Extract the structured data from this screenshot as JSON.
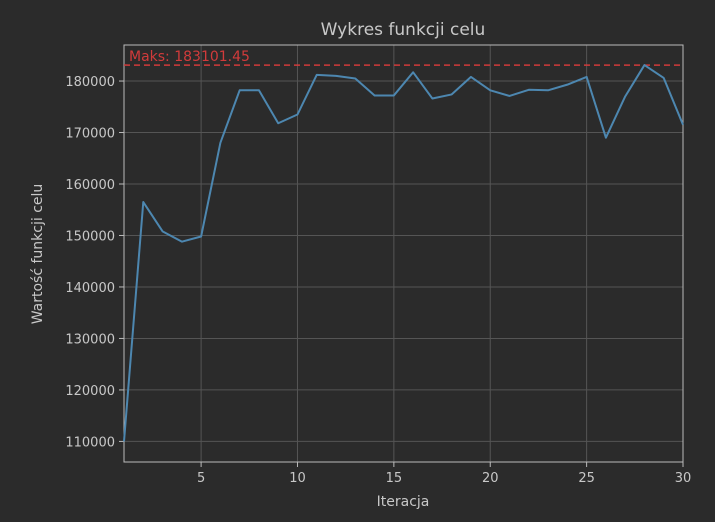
{
  "chart_data": {
    "type": "line",
    "title": "Wykres funkcji celu",
    "xlabel": "Iteracja",
    "ylabel": "Wartość funkcji celu",
    "xlim": [
      1,
      30
    ],
    "ylim": [
      106000,
      187000
    ],
    "xticks": [
      5,
      10,
      15,
      20,
      25,
      30
    ],
    "yticks": [
      110000,
      120000,
      130000,
      140000,
      150000,
      160000,
      170000,
      180000
    ],
    "grid": true,
    "x": [
      1,
      2,
      3,
      4,
      5,
      6,
      7,
      8,
      9,
      10,
      11,
      12,
      13,
      14,
      15,
      16,
      17,
      18,
      19,
      20,
      21,
      22,
      23,
      24,
      25,
      26,
      27,
      28,
      29,
      30
    ],
    "series": [
      {
        "values": [
          110000,
          156500,
          150800,
          148800,
          149800,
          168000,
          178200,
          178200,
          171800,
          173500,
          181200,
          181000,
          180500,
          177200,
          177200,
          181700,
          176600,
          177400,
          180800,
          178200,
          177100,
          178300,
          178200,
          179300,
          180800,
          169000,
          177000,
          183100,
          180600,
          171500
        ]
      }
    ],
    "reference_line": {
      "y": 183101.45,
      "label": "Maks: 183101.45",
      "style": "dashed"
    },
    "colors": {
      "background": "#2b2b2b",
      "plot_background": "#2b2b2b",
      "line": "#4d87b0",
      "reference": "#d13b3b",
      "text": "#c8c8c8",
      "grid": "#555555",
      "axes": "#bbbbbb"
    }
  }
}
